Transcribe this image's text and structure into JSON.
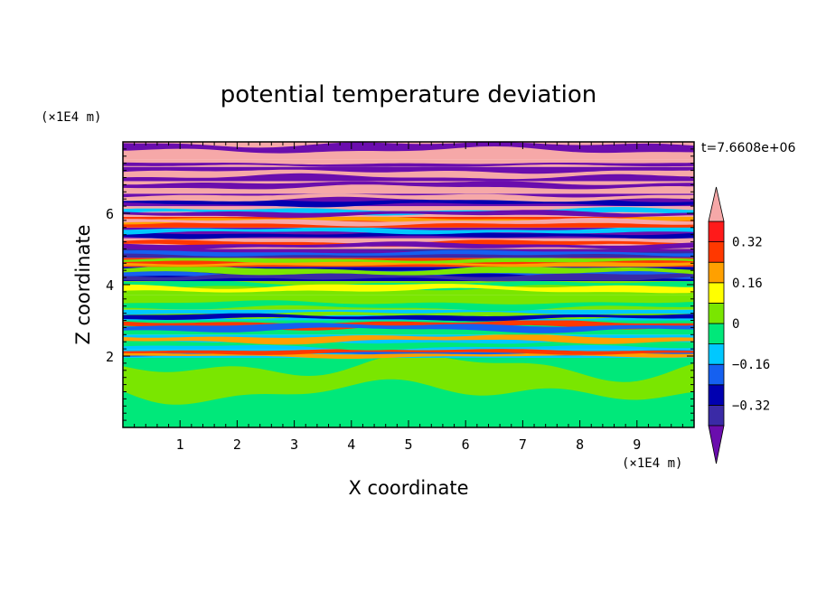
{
  "chart_data": {
    "type": "heatmap",
    "title": "potential temperature deviation",
    "xlabel": "X coordinate",
    "ylabel": "Z coordinate",
    "x_unit_label": "(×1E4 m)",
    "z_unit_label": "(×1E4 m)",
    "time_label": "t=7.6608e+06",
    "xlim": [
      0,
      10
    ],
    "zlim": [
      0,
      8
    ],
    "x_ticks": [
      1,
      2,
      3,
      4,
      5,
      6,
      7,
      8,
      9
    ],
    "x_tick_labels": [
      "1",
      "2",
      "3",
      "4",
      "5",
      "6",
      "7",
      "8",
      "9"
    ],
    "z_ticks": [
      2,
      4,
      6
    ],
    "z_tick_labels": [
      "2",
      "4",
      "6"
    ],
    "grid": false,
    "colorbar": {
      "extend": "both",
      "levels": [
        -0.4,
        -0.32,
        -0.24,
        -0.16,
        -0.08,
        0,
        0.08,
        0.16,
        0.24,
        0.32,
        0.4
      ],
      "colors": [
        "#6a0dad",
        "#3a2aa6",
        "#0000b0",
        "#1560f0",
        "#00c8ff",
        "#00e87a",
        "#7ae600",
        "#ffff00",
        "#ffa000",
        "#ff3800",
        "#ff1a1a",
        "#f6a8a8"
      ],
      "tick_values": [
        0.32,
        0.16,
        0,
        -0.16,
        -0.32
      ],
      "tick_labels": [
        "0.32",
        "0.16",
        "0",
        "−0.16",
        "−0.32"
      ]
    },
    "bands": [
      {
        "z0": 0.0,
        "z1": 1.95,
        "levels": [
          5,
          6
        ]
      },
      {
        "z0": 1.95,
        "z1": 2.2,
        "levels": [
          4,
          3,
          8,
          9
        ]
      },
      {
        "z0": 2.2,
        "z1": 2.6,
        "levels": [
          4,
          5,
          8
        ]
      },
      {
        "z0": 2.6,
        "z1": 3.0,
        "levels": [
          5,
          9,
          3
        ]
      },
      {
        "z0": 3.0,
        "z1": 3.3,
        "levels": [
          4,
          6,
          2
        ]
      },
      {
        "z0": 3.3,
        "z1": 3.7,
        "levels": [
          6,
          5
        ]
      },
      {
        "z0": 3.7,
        "z1": 4.1,
        "levels": [
          6,
          5,
          7
        ]
      },
      {
        "z0": 4.1,
        "z1": 4.5,
        "levels": [
          2,
          3,
          1,
          6
        ]
      },
      {
        "z0": 4.5,
        "z1": 4.75,
        "levels": [
          9,
          8,
          6
        ]
      },
      {
        "z0": 4.75,
        "z1": 5.0,
        "levels": [
          1,
          0,
          3
        ]
      },
      {
        "z0": 5.0,
        "z1": 5.3,
        "levels": [
          11,
          9,
          0
        ]
      },
      {
        "z0": 5.3,
        "z1": 5.6,
        "levels": [
          0,
          2,
          4
        ]
      },
      {
        "z0": 5.6,
        "z1": 5.9,
        "levels": [
          9,
          8,
          11
        ]
      },
      {
        "z0": 5.9,
        "z1": 6.2,
        "levels": [
          11,
          4,
          0
        ]
      },
      {
        "z0": 6.2,
        "z1": 6.55,
        "levels": [
          0,
          2,
          11
        ]
      },
      {
        "z0": 6.55,
        "z1": 6.9,
        "levels": [
          11,
          0
        ]
      },
      {
        "z0": 6.9,
        "z1": 7.3,
        "levels": [
          0,
          11
        ]
      },
      {
        "z0": 7.3,
        "z1": 7.5,
        "levels": [
          11,
          0
        ]
      },
      {
        "z0": 7.5,
        "z1": 8.0,
        "levels": [
          11,
          0
        ]
      }
    ]
  }
}
